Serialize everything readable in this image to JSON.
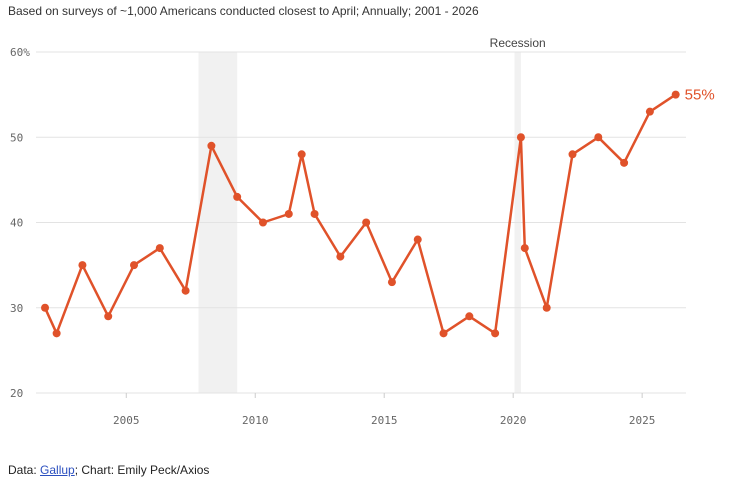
{
  "subtitle": "Based on surveys of ~1,000 Americans conducted closest to April; Annually; 2001 - 2026",
  "footer": {
    "prefix": "Data: ",
    "source_link": "Gallup",
    "suffix": "; Chart: Emily Peck/Axios"
  },
  "chart_data": {
    "type": "line",
    "title": "",
    "xlabel": "",
    "ylabel": "",
    "xlim": [
      2001.5,
      2026.7
    ],
    "ylim": [
      20,
      60
    ],
    "grid": true,
    "y_ticks": [
      20,
      30,
      40,
      50,
      60
    ],
    "y_tick_labels": [
      "20",
      "30",
      "40",
      "50",
      "60%"
    ],
    "x_ticks": [
      2005,
      2010,
      2015,
      2020,
      2025
    ],
    "x_tick_labels": [
      "2005",
      "2010",
      "2015",
      "2020",
      "2025"
    ],
    "recessions": [
      {
        "start": 2007.8,
        "end": 2009.3
      },
      {
        "start": 2020.05,
        "end": 2020.3
      }
    ],
    "recession_label": "Recession",
    "end_label": "55%",
    "color": "#e0522a",
    "series": [
      {
        "points": [
          [
            2001.85,
            30
          ],
          [
            2002.3,
            27
          ],
          [
            2003.3,
            35
          ],
          [
            2004.3,
            29
          ],
          [
            2005.3,
            35
          ],
          [
            2006.3,
            37
          ],
          [
            2007.3,
            32
          ],
          [
            2008.3,
            49
          ],
          [
            2009.3,
            43
          ],
          [
            2010.3,
            40
          ],
          [
            2011.3,
            41
          ],
          [
            2011.8,
            48
          ],
          [
            2012.3,
            41
          ],
          [
            2013.3,
            36
          ],
          [
            2014.3,
            40
          ],
          [
            2015.3,
            33
          ],
          [
            2016.3,
            38
          ],
          [
            2017.3,
            27
          ],
          [
            2018.3,
            29
          ],
          [
            2019.3,
            27
          ],
          [
            2020.3,
            50
          ],
          [
            2020.45,
            37
          ],
          [
            2021.3,
            30
          ],
          [
            2022.3,
            48
          ],
          [
            2023.3,
            50
          ],
          [
            2024.3,
            47
          ],
          [
            2025.3,
            53
          ],
          [
            2026.3,
            55
          ]
        ]
      }
    ]
  }
}
